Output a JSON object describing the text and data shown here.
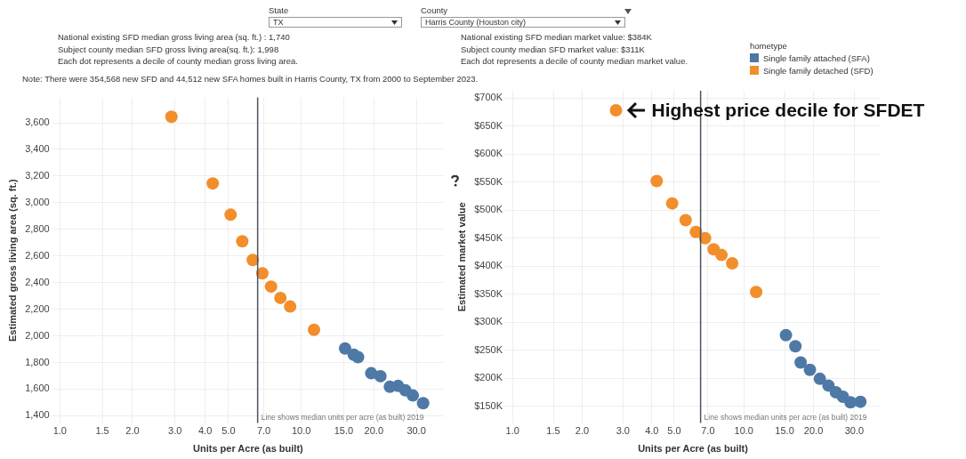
{
  "chart_data": [
    {
      "type": "scatter",
      "xlabel": "Units per Acre (as built)",
      "ylabel": "Estimated gross living area (sq. ft.)",
      "log": "x",
      "grid": true,
      "marker": "circle",
      "xlim": [
        0.93,
        39
      ],
      "ylim": [
        1345,
        3790
      ],
      "xticks": [
        {
          "value": 1,
          "label": "1.0"
        },
        {
          "value": 1.5,
          "label": "1.5"
        },
        {
          "value": 2,
          "label": "2.0"
        },
        {
          "value": 3,
          "label": "3.0"
        },
        {
          "value": 4,
          "label": "4.0"
        },
        {
          "value": 5,
          "label": "5.0"
        },
        {
          "value": 7,
          "label": "7.0"
        },
        {
          "value": 10,
          "label": "10.0"
        },
        {
          "value": 15,
          "label": "15.0"
        },
        {
          "value": 20,
          "label": "20.0"
        },
        {
          "value": 30,
          "label": "30.0"
        }
      ],
      "yticks": [
        {
          "value": 1400,
          "label": "1,400"
        },
        {
          "value": 1600,
          "label": "1,600"
        },
        {
          "value": 1800,
          "label": "1,800"
        },
        {
          "value": 2000,
          "label": "2,000"
        },
        {
          "value": 2200,
          "label": "2,200"
        },
        {
          "value": 2400,
          "label": "2,400"
        },
        {
          "value": 2600,
          "label": "2,600"
        },
        {
          "value": 2800,
          "label": "2,800"
        },
        {
          "value": 3000,
          "label": "3,000"
        },
        {
          "value": 3200,
          "label": "3,200"
        },
        {
          "value": 3400,
          "label": "3,400"
        },
        {
          "value": 3600,
          "label": "3,600"
        }
      ],
      "series": [
        {
          "color": "#4e79a7",
          "x": [
            15.2,
            16.5,
            17.2,
            19.5,
            21.3,
            23.3,
            25.2,
            27,
            29,
            32
          ],
          "values": [
            1905,
            1858,
            1840,
            1719,
            1697,
            1618,
            1624,
            1591,
            1552,
            1494
          ]
        },
        {
          "color": "#f28e2b",
          "x": [
            2.9,
            4.3,
            5.1,
            5.7,
            6.3,
            6.9,
            7.5,
            8.2,
            9.0,
            11.3
          ],
          "values": [
            3645,
            3145,
            2910,
            2710,
            2570,
            2470,
            2370,
            2285,
            2220,
            2045
          ]
        }
      ],
      "ref_lines": [
        {
          "axis": "x",
          "value": 6.6,
          "label": "Line shows median units per acre (as built) 2019",
          "color": "#4a5560"
        }
      ],
      "annotations": [
        "State",
        "TX",
        "National existing SFD median gross living area (sq. ft.) : 1,740",
        "Subject county median SFD gross living area(sq. ft.): 1,998",
        "Each dot represents a decile of county median gross living area.",
        "Note: There were 354,568 new SFD and 44,512 new SFA homes built in Harris County, TX from 2000 to September 2023."
      ]
    },
    {
      "type": "scatter",
      "xlabel": "Units per Acre (as built)",
      "ylabel": "Estimated market value",
      "log": "x",
      "grid": true,
      "marker": "circle",
      "legend": "top right",
      "legend_title": "hometype",
      "xlim": [
        0.93,
        39
      ],
      "ylim": [
        120,
        713
      ],
      "xticks": [
        {
          "value": 1,
          "label": "1.0"
        },
        {
          "value": 1.5,
          "label": "1.5"
        },
        {
          "value": 2,
          "label": "2.0"
        },
        {
          "value": 3,
          "label": "3.0"
        },
        {
          "value": 4,
          "label": "4.0"
        },
        {
          "value": 5,
          "label": "5.0"
        },
        {
          "value": 7,
          "label": "7.0"
        },
        {
          "value": 10,
          "label": "10.0"
        },
        {
          "value": 15,
          "label": "15.0"
        },
        {
          "value": 20,
          "label": "20.0"
        },
        {
          "value": 30,
          "label": "30.0"
        }
      ],
      "yticks": [
        {
          "value": 150,
          "label": "$150K"
        },
        {
          "value": 200,
          "label": "$200K"
        },
        {
          "value": 250,
          "label": "$250K"
        },
        {
          "value": 300,
          "label": "$300K"
        },
        {
          "value": 350,
          "label": "$350K"
        },
        {
          "value": 400,
          "label": "$400K"
        },
        {
          "value": 450,
          "label": "$450K"
        },
        {
          "value": 500,
          "label": "$500K"
        },
        {
          "value": 550,
          "label": "$550K"
        },
        {
          "value": 600,
          "label": "$600K"
        },
        {
          "value": 650,
          "label": "$650K"
        },
        {
          "value": 700,
          "label": "$700K"
        }
      ],
      "series": [
        {
          "name": "Single family attached (SFA)",
          "color": "#4e79a7",
          "x": [
            15.2,
            16.7,
            17.6,
            19.3,
            21.3,
            23.2,
            25,
            26.8,
            28.9,
            31.9
          ],
          "values": [
            277,
            257,
            228,
            215,
            199,
            187,
            175,
            167,
            157,
            158
          ]
        },
        {
          "name": "Single family detached (SFD)",
          "color": "#f28e2b",
          "x": [
            2.8,
            4.2,
            4.9,
            5.6,
            6.2,
            6.8,
            7.4,
            8.0,
            8.9,
            11.3
          ],
          "values": [
            678,
            552,
            512,
            482,
            461,
            450,
            430,
            420,
            405,
            354
          ]
        }
      ],
      "ref_lines": [
        {
          "axis": "x",
          "value": 6.5,
          "label": "Line shows median units per acre (as built) 2019",
          "color": "#4a5560"
        }
      ],
      "annotations": [
        "County",
        "Harris County (Houston city)",
        "National existing SFD median market value: $384K",
        "Subject county median SFD market value: $311K",
        "Each dot represents a decile of county median market value.",
        {
          "text": "Highest price decile for SFDET",
          "x": 2.8,
          "y": 678
        }
      ]
    }
  ]
}
